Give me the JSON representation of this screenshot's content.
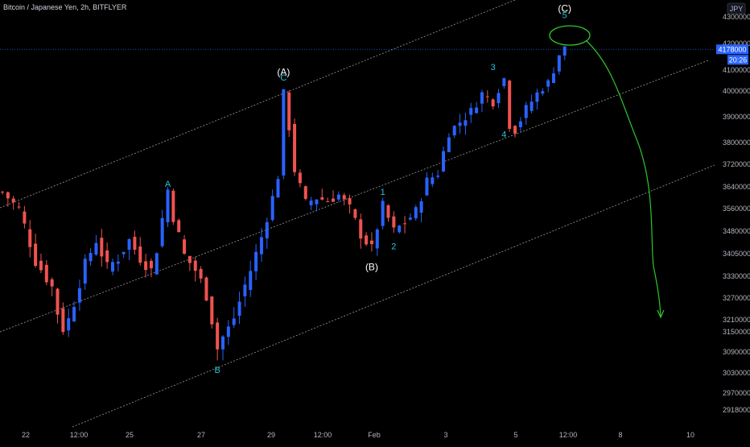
{
  "title": "Bitcoin / Japanese Yen, 2h, BITFLYER",
  "currency_label": "JPY",
  "last_price_label": "4178000",
  "countdown_label": "20:26",
  "colors": {
    "background": "#000000",
    "up": "#2962ff",
    "down": "#ef5350",
    "wave_label": "#26c6da",
    "projection": "#2ec52e",
    "channel": "#cfcfcf",
    "price_line": "#2962ff"
  },
  "chart_data": {
    "type": "candlestick",
    "title": "Bitcoin / Japanese Yen, 2h, BITFLYER",
    "y_tick_labels": [
      "4300000",
      "4200000",
      "4100000",
      "4000000",
      "3900000",
      "3800000",
      "3720000",
      "3640000",
      "3560000",
      "3480000",
      "3405000",
      "3330000",
      "3270000",
      "3210000",
      "3150000",
      "3090000",
      "3030000",
      "2970000",
      "2918000"
    ],
    "x_tick_labels": [
      "22",
      "12:00",
      "25",
      "27",
      "29",
      "12:00",
      "Feb",
      "3",
      "5",
      "12:00",
      "8",
      "10"
    ],
    "price_path": [
      [
        0,
        3620000
      ],
      [
        3,
        3560000
      ],
      [
        6,
        3380000
      ],
      [
        9,
        3300000
      ],
      [
        11,
        3160000
      ],
      [
        13,
        3260000
      ],
      [
        15,
        3370000
      ],
      [
        17,
        3450000
      ],
      [
        19,
        3360000
      ],
      [
        21,
        3390000
      ],
      [
        23,
        3450000
      ],
      [
        25,
        3390000
      ],
      [
        27,
        3350000
      ],
      [
        28,
        3420000
      ],
      [
        30,
        3630000
      ],
      [
        31,
        3530000
      ],
      [
        33,
        3400000
      ],
      [
        35,
        3350000
      ],
      [
        37,
        3280000
      ],
      [
        38,
        3200000
      ],
      [
        39,
        3100000
      ],
      [
        41,
        3170000
      ],
      [
        43,
        3260000
      ],
      [
        45,
        3350000
      ],
      [
        47,
        3460000
      ],
      [
        49,
        3600000
      ],
      [
        50,
        3680000
      ],
      [
        51,
        3990000
      ],
      [
        52,
        3860000
      ],
      [
        53,
        3700000
      ],
      [
        55,
        3580000
      ],
      [
        57,
        3600000
      ],
      [
        59,
        3590000
      ],
      [
        61,
        3610000
      ],
      [
        63,
        3560000
      ],
      [
        65,
        3470000
      ],
      [
        67,
        3420000
      ],
      [
        69,
        3570000
      ],
      [
        71,
        3480000
      ],
      [
        73,
        3510000
      ],
      [
        75,
        3550000
      ],
      [
        77,
        3660000
      ],
      [
        79,
        3690000
      ],
      [
        81,
        3840000
      ],
      [
        83,
        3880000
      ],
      [
        85,
        3920000
      ],
      [
        87,
        3990000
      ],
      [
        89,
        3960000
      ],
      [
        91,
        4060000
      ],
      [
        92,
        3870000
      ],
      [
        93,
        3850000
      ],
      [
        95,
        3930000
      ],
      [
        97,
        3990000
      ],
      [
        99,
        4040000
      ],
      [
        100,
        4100000
      ],
      [
        101,
        4160000
      ],
      [
        102,
        4180000
      ]
    ],
    "wave_labels": [
      {
        "text": "A",
        "kind": "minor",
        "x": 30,
        "y": 3640000
      },
      {
        "text": "B",
        "kind": "minor",
        "x": 39,
        "y": 3030000
      },
      {
        "text": "(A)",
        "kind": "major",
        "x": 51,
        "y": 4075000
      },
      {
        "text": "C",
        "kind": "minor",
        "x": 51,
        "y": 4050000
      },
      {
        "text": "(B)",
        "kind": "major",
        "x": 67,
        "y": 3350000
      },
      {
        "text": "1",
        "kind": "minor",
        "x": 69,
        "y": 3610000
      },
      {
        "text": "2",
        "kind": "minor",
        "x": 71,
        "y": 3420000
      },
      {
        "text": "3",
        "kind": "minor",
        "x": 89,
        "y": 4100000
      },
      {
        "text": "4",
        "kind": "minor",
        "x": 91,
        "y": 3820000
      },
      {
        "text": "(C)",
        "kind": "major",
        "x": 102,
        "y": 4320000
      },
      {
        "text": "5",
        "kind": "minor",
        "x": 102,
        "y": 4295000
      }
    ],
    "last_price": 4178000
  }
}
